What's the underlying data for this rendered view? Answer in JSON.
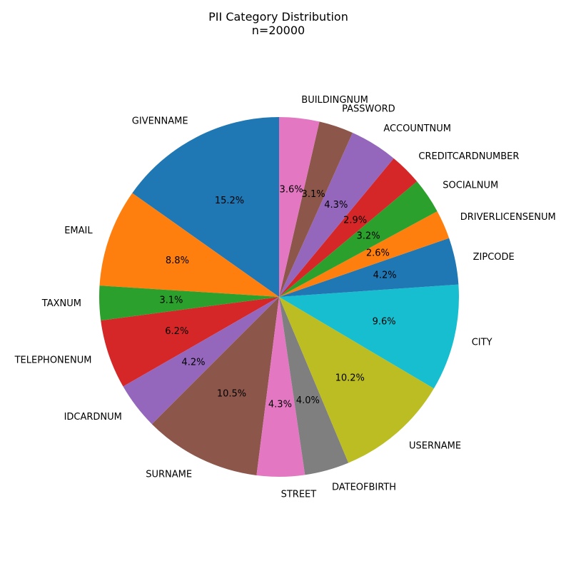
{
  "chart_data": {
    "type": "pie",
    "title": "PII Category Distribution",
    "subtitle": "n=20000",
    "start_angle_deg": 90,
    "direction": "counterclockwise",
    "slices": [
      {
        "label": "GIVENNAME",
        "value": 15.2,
        "pct_label": "15.2%",
        "color": "#1f77b4"
      },
      {
        "label": "EMAIL",
        "value": 8.8,
        "pct_label": "8.8%",
        "color": "#ff7f0e"
      },
      {
        "label": "TAXNUM",
        "value": 3.1,
        "pct_label": "3.1%",
        "color": "#2ca02c"
      },
      {
        "label": "TELEPHONENUM",
        "value": 6.2,
        "pct_label": "6.2%",
        "color": "#d62728"
      },
      {
        "label": "IDCARDNUM",
        "value": 4.2,
        "pct_label": "4.2%",
        "color": "#9467bd"
      },
      {
        "label": "SURNAME",
        "value": 10.5,
        "pct_label": "10.5%",
        "color": "#8c564b"
      },
      {
        "label": "STREET",
        "value": 4.3,
        "pct_label": "4.3%",
        "color": "#e377c2"
      },
      {
        "label": "DATEOFBIRTH",
        "value": 4.0,
        "pct_label": "4.0%",
        "color": "#7f7f7f"
      },
      {
        "label": "USERNAME",
        "value": 10.2,
        "pct_label": "10.2%",
        "color": "#bcbd22"
      },
      {
        "label": "CITY",
        "value": 9.6,
        "pct_label": "9.6%",
        "color": "#17becf"
      },
      {
        "label": "ZIPCODE",
        "value": 4.2,
        "pct_label": "4.2%",
        "color": "#1f77b4"
      },
      {
        "label": "DRIVERLICENSENUM",
        "value": 2.6,
        "pct_label": "2.6%",
        "color": "#ff7f0e"
      },
      {
        "label": "SOCIALNUM",
        "value": 3.2,
        "pct_label": "3.2%",
        "color": "#2ca02c"
      },
      {
        "label": "CREDITCARDNUMBER",
        "value": 2.9,
        "pct_label": "2.9%",
        "color": "#d62728"
      },
      {
        "label": "ACCOUNTNUM",
        "value": 4.3,
        "pct_label": "4.3%",
        "color": "#9467bd"
      },
      {
        "label": "PASSWORD",
        "value": 3.1,
        "pct_label": "3.1%",
        "color": "#8c564b"
      },
      {
        "label": "BUILDINGNUM",
        "value": 3.6,
        "pct_label": "3.6%",
        "color": "#e377c2"
      }
    ]
  }
}
